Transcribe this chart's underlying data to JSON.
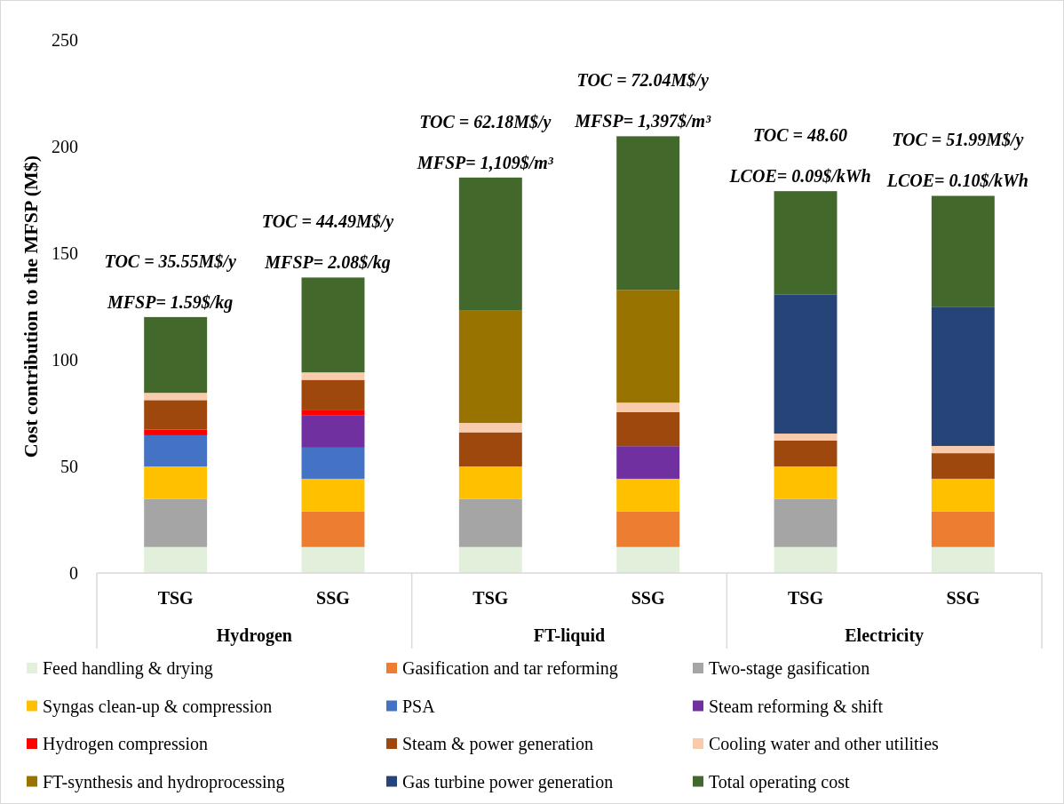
{
  "chart_data": {
    "type": "bar",
    "stacked": true,
    "ylabel": "Cost contribution to the MFSP (M$)",
    "categories": [
      "TSG",
      "SSG",
      "TSG",
      "SSG",
      "TSG",
      "SSG"
    ],
    "ylim": [
      0,
      250
    ],
    "yticks": [
      0,
      50,
      100,
      150,
      200,
      250
    ],
    "grid": false,
    "legend": "bottom",
    "series": [
      {
        "name": "Feed handling & drying",
        "color": "#e2efda",
        "values": [
          12.2,
          12.2,
          12.2,
          12.2,
          12.2,
          12.2
        ]
      },
      {
        "name": "Gasification and tar reforming",
        "color": "#ed7d31",
        "values": [
          null,
          16.7,
          null,
          16.7,
          null,
          16.7
        ]
      },
      {
        "name": "Two-stage gasification",
        "color": "#a5a5a5",
        "values": [
          22.5,
          null,
          22.5,
          null,
          22.5,
          null
        ]
      },
      {
        "name": "Syngas clean-up & compression",
        "color": "#ffc000",
        "values": [
          15.3,
          15.3,
          15.3,
          15.3,
          15.3,
          15.3
        ]
      },
      {
        "name": "PSA",
        "color": "#4472c4",
        "values": [
          14.6,
          14.6,
          null,
          null,
          null,
          null
        ]
      },
      {
        "name": "Steam reforming & shift",
        "color": "#7030a0",
        "values": [
          null,
          15.3,
          null,
          15.3,
          null,
          null
        ]
      },
      {
        "name": "Hydrogen compression",
        "color": "#ff0000",
        "values": [
          2.6,
          2.5,
          null,
          null,
          null,
          null
        ]
      },
      {
        "name": "Steam & power generation",
        "color": "#9e480e",
        "values": [
          13.9,
          14.0,
          16.0,
          16.0,
          12.1,
          12.0
        ]
      },
      {
        "name": "Cooling water and other utilities",
        "color": "#f8cbad",
        "values": [
          3.4,
          3.5,
          4.4,
          4.4,
          3.3,
          3.4
        ]
      },
      {
        "name": "FT-synthesis and hydroprocessing",
        "color": "#997300",
        "values": [
          null,
          null,
          52.9,
          52.9,
          null,
          null
        ]
      },
      {
        "name": "Gas turbine power generation",
        "color": "#264478",
        "values": [
          null,
          null,
          null,
          null,
          65.1,
          65.3
        ]
      },
      {
        "name": "Total operating  cost",
        "color": "#43682b",
        "values": [
          35.55,
          44.49,
          62.18,
          72.04,
          48.6,
          51.99
        ]
      }
    ],
    "annotations": [
      "Hydrogen",
      "FT-liquid",
      "Electricity",
      "TOC = 35.55M$/y",
      "MFSP= 1.59$/kg",
      "TOC = 44.49M$/y",
      "MFSP= 2.08$/kg",
      "TOC = 62.18M$/y",
      "MFSP= 1,109$/m³",
      "TOC = 72.04M$/y",
      "MFSP= 1,397$/m³",
      "TOC = 48.60",
      "LCOE= 0.09$/kWh",
      "TOC = 51.99M$/y",
      "LCOE= 0.10$/kWh"
    ]
  }
}
